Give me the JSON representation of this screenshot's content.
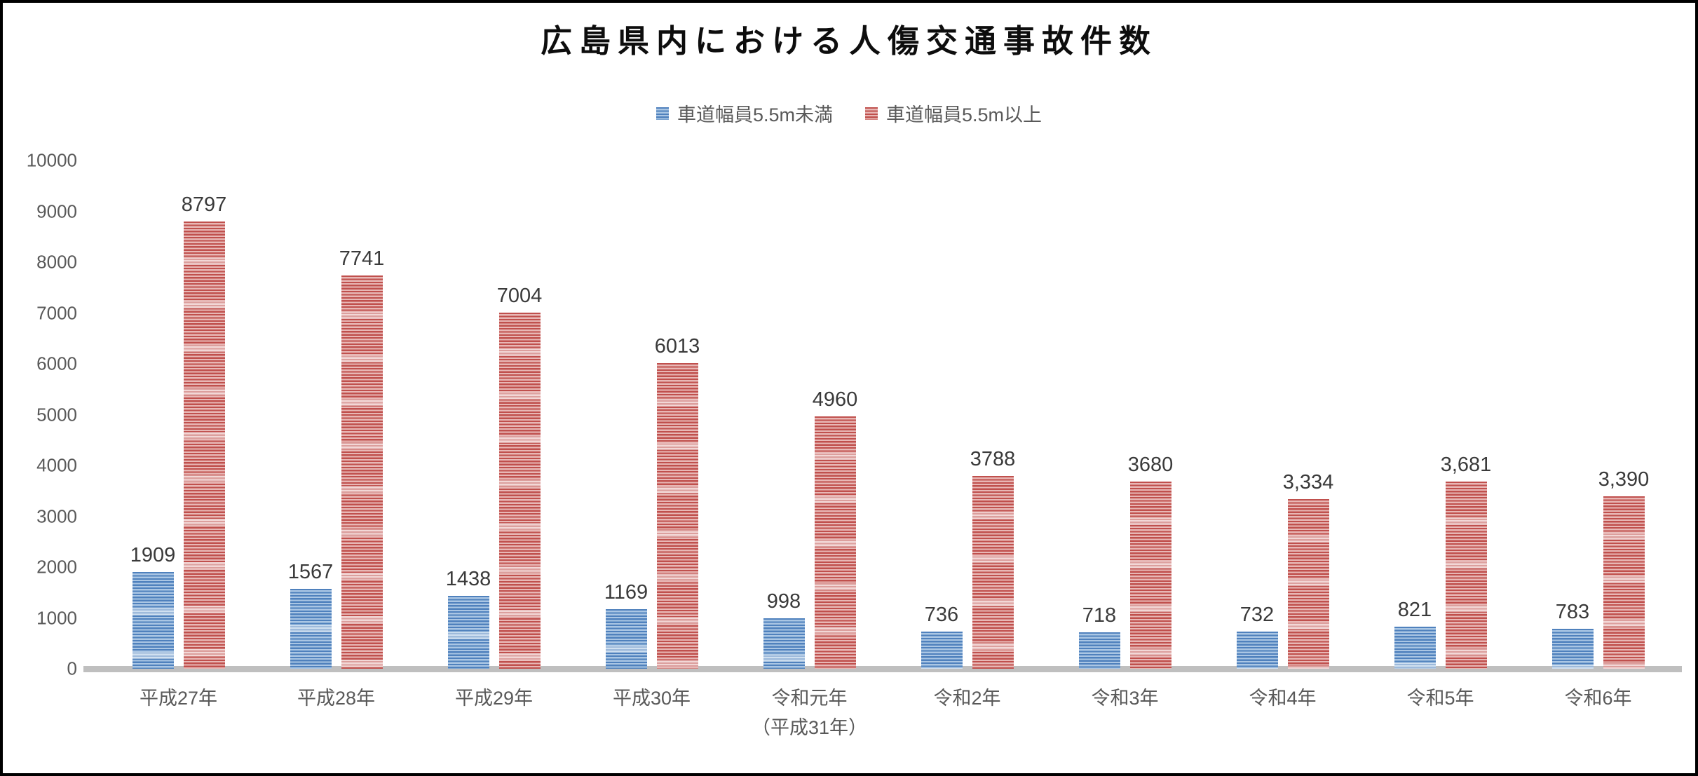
{
  "chart_data": {
    "type": "bar",
    "title": "広島県内における人傷交通事故件数",
    "legend_position": "top",
    "grid": false,
    "ylim": [
      0,
      10000
    ],
    "ytick_interval": 1000,
    "yticks": [
      "10000",
      "9000",
      "8000",
      "7000",
      "6000",
      "5000",
      "4000",
      "3000",
      "2000",
      "1000",
      "0"
    ],
    "categories": [
      {
        "label": "平成27年",
        "sublabel": ""
      },
      {
        "label": "平成28年",
        "sublabel": ""
      },
      {
        "label": "平成29年",
        "sublabel": ""
      },
      {
        "label": "平成30年",
        "sublabel": ""
      },
      {
        "label": "令和元年",
        "sublabel": "（平成31年）"
      },
      {
        "label": "令和2年",
        "sublabel": ""
      },
      {
        "label": "令和3年",
        "sublabel": ""
      },
      {
        "label": "令和4年",
        "sublabel": ""
      },
      {
        "label": "令和5年",
        "sublabel": ""
      },
      {
        "label": "令和6年",
        "sublabel": ""
      }
    ],
    "series": [
      {
        "name": "車道幅員5.5m未満",
        "color": "#4F81BD",
        "stripe_light": "#AAC6E4",
        "values": [
          1909,
          1567,
          1438,
          1169,
          998,
          736,
          718,
          732,
          821,
          783
        ],
        "labels": [
          "1909",
          "1567",
          "1438",
          "1169",
          "998",
          "736",
          "718",
          "732",
          "821",
          "783"
        ]
      },
      {
        "name": "車道幅員5.5m以上",
        "color": "#C0504D",
        "stripe_light": "#E8B7B5",
        "values": [
          8797,
          7741,
          7004,
          6013,
          4960,
          3788,
          3680,
          3334,
          3681,
          3390
        ],
        "labels": [
          "8797",
          "7741",
          "7004",
          "6013",
          "4960",
          "3788",
          "3680",
          "3,334",
          "3,681",
          "3,390"
        ]
      }
    ]
  },
  "colors": {
    "background": "#FFFFFF",
    "frame_border": "#000000",
    "axis_text": "#595959",
    "data_label_text": "#3A3A3A",
    "baseline": "#BFBFBF"
  }
}
